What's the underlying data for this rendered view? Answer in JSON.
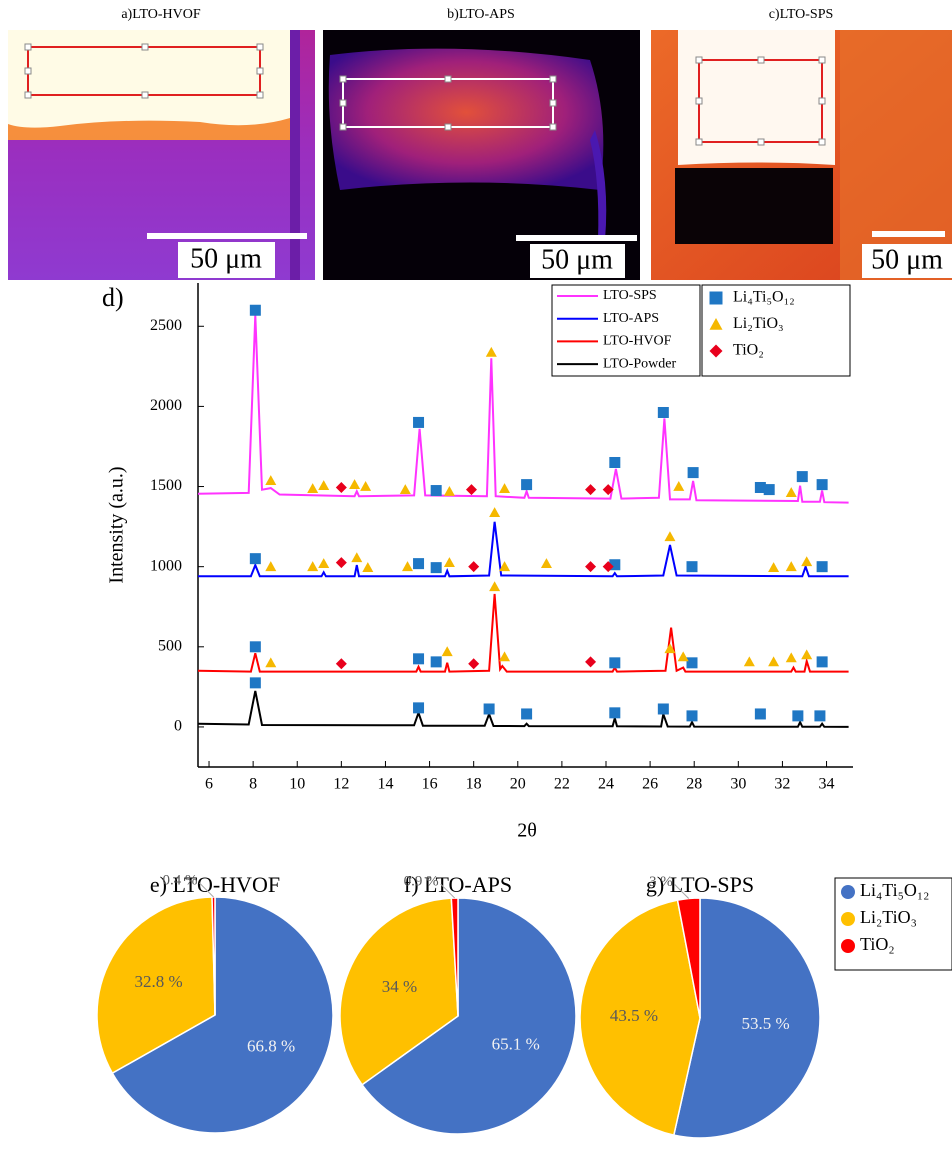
{
  "panels": [
    {
      "label": "a)LTO-HVOF",
      "scale_bar": "50 μm"
    },
    {
      "label": "b)LTO-APS",
      "scale_bar": "50 μm"
    },
    {
      "label": "c)LTO-SPS",
      "scale_bar": "50 μm"
    }
  ],
  "chart_data": [
    {
      "type": "line",
      "panel_label": "d)",
      "xlabel": "2θ",
      "ylabel": "Intensity (a.u.)",
      "xlim": [
        5.5,
        35.2
      ],
      "ylim": [
        -250,
        2770
      ],
      "xticks": [
        6,
        8,
        10,
        12,
        14,
        16,
        18,
        20,
        22,
        24,
        26,
        28,
        30,
        32,
        34
      ],
      "yticks": [
        0,
        500,
        1000,
        1500,
        2000,
        2500
      ],
      "series": [
        {
          "name": "LTO-SPS",
          "color": "#ff33ff",
          "x": [
            5.5,
            7.8,
            8.1,
            8.4,
            8.8,
            9.2,
            12.6,
            12.7,
            12.8,
            15.3,
            15.55,
            15.8,
            18.6,
            18.8,
            19.0,
            20.3,
            20.4,
            20.5,
            24.2,
            24.45,
            24.7,
            26.4,
            26.65,
            26.9,
            27.8,
            27.95,
            28.1,
            32.7,
            32.8,
            32.9,
            33.7,
            33.8,
            33.9,
            35
          ],
          "values": [
            1455,
            1460,
            2570,
            1480,
            1490,
            1450,
            1440,
            1470,
            1440,
            1445,
            1860,
            1445,
            1440,
            2300,
            1440,
            1430,
            1470,
            1430,
            1425,
            1610,
            1425,
            1430,
            1925,
            1420,
            1420,
            1535,
            1415,
            1410,
            1505,
            1405,
            1405,
            1475,
            1402,
            1400
          ]
        },
        {
          "name": "LTO-APS",
          "color": "#0000ff",
          "x": [
            5.5,
            7.9,
            8.1,
            8.3,
            11.1,
            11.2,
            11.3,
            12.6,
            12.7,
            12.8,
            16.7,
            16.8,
            16.9,
            18.7,
            18.95,
            19.25,
            24.3,
            24.4,
            24.5,
            26.6,
            26.9,
            27.2,
            32.9,
            33.05,
            33.2,
            35
          ],
          "values": [
            940,
            940,
            1010,
            940,
            940,
            965,
            940,
            940,
            1010,
            940,
            940,
            975,
            940,
            945,
            1280,
            945,
            940,
            960,
            940,
            945,
            1135,
            945,
            940,
            1000,
            940,
            940
          ]
        },
        {
          "name": "LTO-HVOF",
          "color": "#ff0000",
          "x": [
            5.5,
            7.9,
            8.1,
            8.3,
            15.4,
            15.5,
            15.6,
            16.7,
            16.8,
            16.9,
            18.7,
            18.95,
            19.2,
            19.3,
            19.5,
            24.3,
            24.4,
            24.5,
            26.7,
            26.95,
            27.2,
            27.5,
            27.6,
            32.4,
            32.5,
            32.6,
            33.0,
            33.1,
            33.25,
            35
          ],
          "values": [
            350,
            345,
            460,
            345,
            345,
            375,
            345,
            345,
            400,
            345,
            350,
            830,
            360,
            380,
            345,
            345,
            370,
            345,
            350,
            620,
            350,
            370,
            345,
            345,
            370,
            345,
            345,
            410,
            345,
            345
          ]
        },
        {
          "name": "LTO-Powder",
          "color": "#000000",
          "x": [
            5.5,
            7.8,
            8.1,
            8.4,
            15.3,
            15.5,
            15.7,
            18.5,
            18.7,
            18.9,
            20.3,
            20.4,
            20.5,
            24.3,
            24.4,
            24.5,
            26.5,
            26.6,
            26.8,
            27.8,
            27.9,
            28.0,
            32.7,
            32.8,
            32.9,
            33.7,
            33.8,
            33.9,
            35
          ],
          "values": [
            20,
            15,
            225,
            12,
            10,
            88,
            8,
            8,
            80,
            6,
            5,
            20,
            5,
            4,
            55,
            4,
            3,
            80,
            3,
            2,
            30,
            2,
            1,
            30,
            1,
            1,
            20,
            1,
            0
          ]
        }
      ],
      "markers": [
        {
          "name": "Li₄Ti₅O₁₂",
          "color": "#1f77c4",
          "shape": "square",
          "x": [
            8.1,
            15.5,
            18.7,
            20.4,
            24.4,
            26.6,
            27.9,
            31,
            32.7,
            33.7,
            8.1,
            15.5,
            16.3,
            24.4,
            27.9,
            33.8,
            8.1,
            15.5,
            16.3,
            24.4,
            27.9,
            33.8,
            8.1,
            15.5,
            16.3,
            20.4,
            24.4,
            26.6,
            27.95,
            31,
            31.4,
            32.9,
            33.8
          ],
          "values": [
            275,
            119,
            112,
            81,
            88,
            112,
            69,
            81,
            69,
            69,
            500,
            425,
            406,
            400,
            400,
            406,
            1050,
            1019,
            994,
            1012,
            1000,
            1000,
            2600,
            1900,
            1475,
            1512,
            1650,
            1962,
            1587,
            1494,
            1481,
            1562,
            1512
          ]
        },
        {
          "name": "Li₂TiO₃",
          "color": "#f5b800",
          "shape": "triangle",
          "x": [
            8.8,
            16.8,
            18.95,
            19.4,
            26.9,
            27.5,
            30.5,
            31.6,
            32.4,
            33.1,
            8.8,
            10.7,
            11.2,
            12.7,
            13.2,
            15.0,
            16.9,
            18.95,
            19.4,
            21.3,
            26.9,
            31.6,
            32.4,
            33.1,
            8.8,
            10.7,
            11.2,
            12.6,
            13.1,
            14.9,
            16.9,
            18.8,
            19.4,
            27.3,
            32.4
          ],
          "values": [
            400,
            469,
            875,
            437,
            488,
            437,
            406,
            406,
            431,
            450,
            1000,
            1000,
            1019,
            1056,
            994,
            1000,
            1025,
            1337,
            1000,
            1019,
            1187,
            994,
            1000,
            1031,
            1537,
            1487,
            1506,
            1512,
            1500,
            1481,
            1469,
            2337,
            1487,
            1500,
            1462
          ]
        },
        {
          "name": "TiO₂",
          "color": "#e8001c",
          "shape": "diamond",
          "x": [
            12,
            18.0,
            23.3,
            12,
            18,
            23.3,
            24.1,
            12,
            17.9,
            23.3,
            24.1
          ],
          "values": [
            394,
            394,
            406,
            1025,
            1000,
            1000,
            1000,
            1494,
            1481,
            1481,
            1481
          ]
        }
      ]
    },
    {
      "type": "pie",
      "categories": [
        "Li₄Ti₅O₁₂",
        "Li₂TiO₃",
        "TiO₂"
      ],
      "colors": [
        "#4472c4",
        "#ffc000",
        "#ff0000"
      ],
      "pies": [
        {
          "title": "e) LTO-HVOF",
          "values": [
            66.8,
            32.8,
            0.4
          ],
          "value_labels": [
            "66.8 %",
            "32.8 %",
            "0.4 %"
          ]
        },
        {
          "title": "f) LTO-APS",
          "values": [
            65.1,
            34,
            0.9
          ],
          "value_labels": [
            "65.1 %",
            "34 %",
            "0.9 %"
          ]
        },
        {
          "title": "g) LTO-SPS",
          "values": [
            53.5,
            43.5,
            3
          ],
          "value_labels": [
            "53.5 %",
            "43.5 %",
            "3 %"
          ]
        }
      ]
    }
  ]
}
